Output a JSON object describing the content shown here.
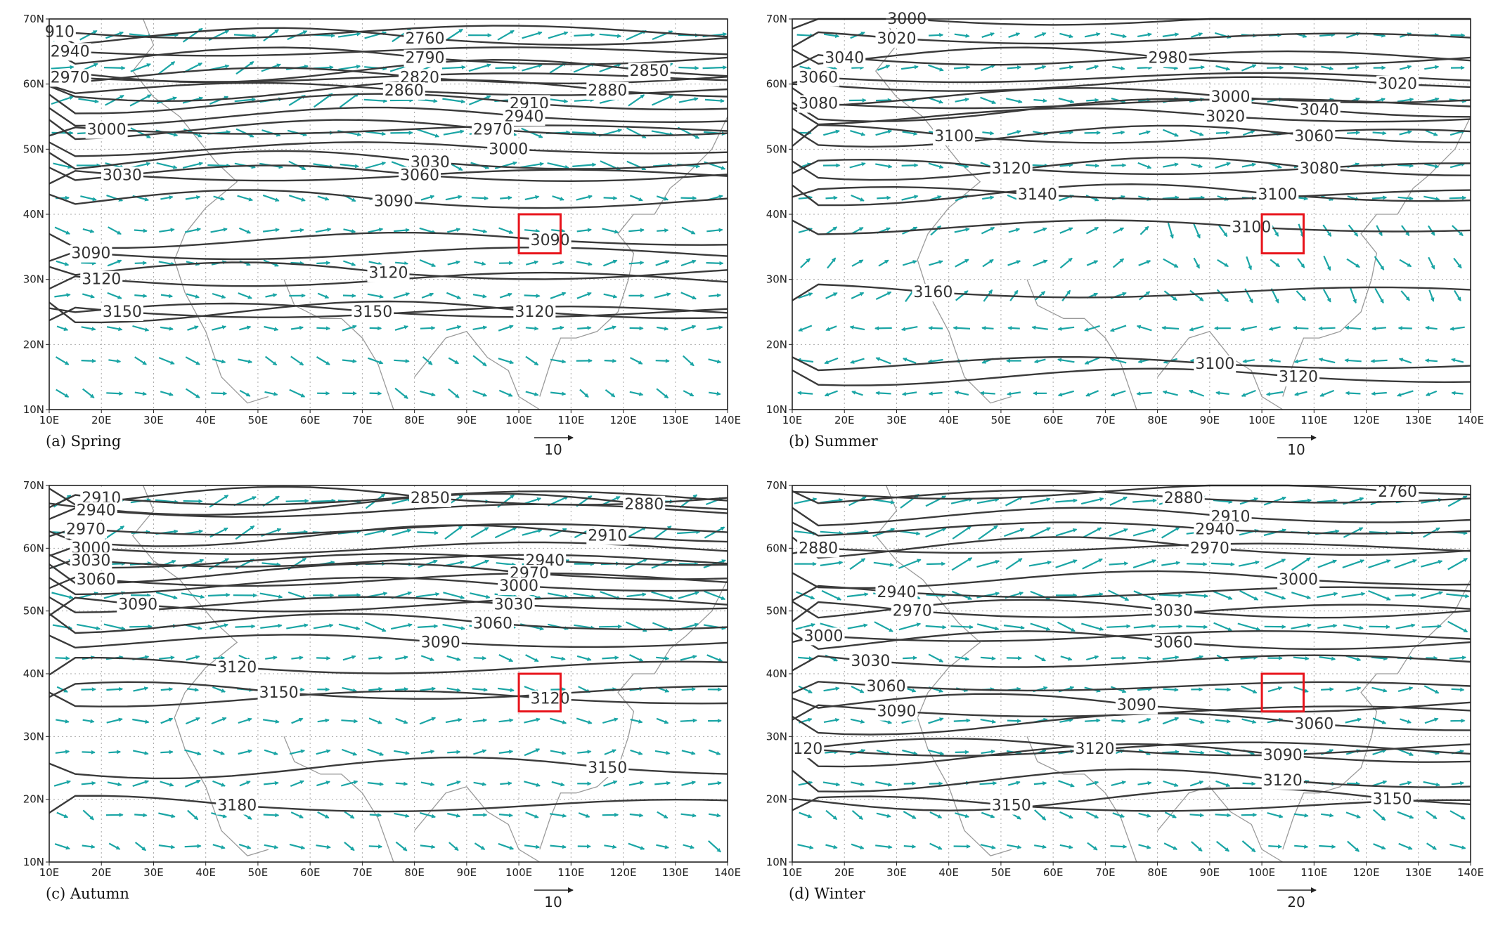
{
  "figure": {
    "colors": {
      "wind_vector": "#1aa5a5",
      "contour": "#3a3a3a",
      "coastline": "#9a9a9a",
      "study_box": "#e8141c",
      "grid": "#a9a9a9"
    },
    "x_ticks": [
      "10E",
      "20E",
      "30E",
      "40E",
      "50E",
      "60E",
      "70E",
      "80E",
      "90E",
      "100E",
      "110E",
      "120E",
      "130E",
      "140E"
    ],
    "y_ticks": [
      "70N",
      "60N",
      "50N",
      "40N",
      "30N",
      "20N",
      "10N"
    ],
    "lon_range": [
      10,
      140
    ],
    "lat_range": [
      10,
      70
    ],
    "panels": [
      {
        "id": "spring",
        "caption": "(a) Spring",
        "ref_vector": "10",
        "study_box": {
          "lon": [
            100,
            108
          ],
          "lat": [
            34,
            40
          ]
        },
        "contour_labels": [
          {
            "text": "910",
            "lon": 12,
            "lat": 68
          },
          {
            "text": "2940",
            "lon": 14,
            "lat": 65
          },
          {
            "text": "2970",
            "lon": 14,
            "lat": 61
          },
          {
            "text": "2760",
            "lon": 82,
            "lat": 67
          },
          {
            "text": "2790",
            "lon": 82,
            "lat": 64
          },
          {
            "text": "2820",
            "lon": 81,
            "lat": 61
          },
          {
            "text": "2860",
            "lon": 78,
            "lat": 59
          },
          {
            "text": "2850",
            "lon": 125,
            "lat": 62
          },
          {
            "text": "2880",
            "lon": 117,
            "lat": 59
          },
          {
            "text": "2910",
            "lon": 102,
            "lat": 57
          },
          {
            "text": "2940",
            "lon": 101,
            "lat": 55
          },
          {
            "text": "2970",
            "lon": 95,
            "lat": 53
          },
          {
            "text": "3000",
            "lon": 21,
            "lat": 53
          },
          {
            "text": "3000",
            "lon": 98,
            "lat": 50
          },
          {
            "text": "3030",
            "lon": 83,
            "lat": 48
          },
          {
            "text": "3060",
            "lon": 81,
            "lat": 46
          },
          {
            "text": "3030",
            "lon": 24,
            "lat": 46
          },
          {
            "text": "3090",
            "lon": 76,
            "lat": 42
          },
          {
            "text": "3090",
            "lon": 106,
            "lat": 36
          },
          {
            "text": "3090",
            "lon": 18,
            "lat": 34
          },
          {
            "text": "3120",
            "lon": 75,
            "lat": 31
          },
          {
            "text": "3120",
            "lon": 20,
            "lat": 30
          },
          {
            "text": "3150",
            "lon": 24,
            "lat": 25
          },
          {
            "text": "3150",
            "lon": 72,
            "lat": 25
          },
          {
            "text": "3120",
            "lon": 103,
            "lat": 25
          }
        ]
      },
      {
        "id": "summer",
        "caption": "(b) Summer",
        "ref_vector": "10",
        "study_box": {
          "lon": [
            100,
            108
          ],
          "lat": [
            34,
            40
          ]
        },
        "contour_labels": [
          {
            "text": "3000",
            "lon": 32,
            "lat": 70
          },
          {
            "text": "3020",
            "lon": 30,
            "lat": 67
          },
          {
            "text": "3040",
            "lon": 20,
            "lat": 64
          },
          {
            "text": "3060",
            "lon": 15,
            "lat": 61
          },
          {
            "text": "3080",
            "lon": 15,
            "lat": 57
          },
          {
            "text": "2980",
            "lon": 82,
            "lat": 64
          },
          {
            "text": "3000",
            "lon": 94,
            "lat": 58
          },
          {
            "text": "3020",
            "lon": 93,
            "lat": 55
          },
          {
            "text": "3020",
            "lon": 126,
            "lat": 60
          },
          {
            "text": "3040",
            "lon": 111,
            "lat": 56
          },
          {
            "text": "3060",
            "lon": 110,
            "lat": 52
          },
          {
            "text": "3080",
            "lon": 111,
            "lat": 47
          },
          {
            "text": "3100",
            "lon": 103,
            "lat": 43
          },
          {
            "text": "3100",
            "lon": 41,
            "lat": 52
          },
          {
            "text": "3120",
            "lon": 52,
            "lat": 47
          },
          {
            "text": "3140",
            "lon": 57,
            "lat": 43
          },
          {
            "text": "3100",
            "lon": 98,
            "lat": 38
          },
          {
            "text": "3160",
            "lon": 37,
            "lat": 28
          },
          {
            "text": "3100",
            "lon": 91,
            "lat": 17
          },
          {
            "text": "3120",
            "lon": 107,
            "lat": 15
          }
        ]
      },
      {
        "id": "autumn",
        "caption": "(c) Autumn",
        "ref_vector": "10",
        "study_box": {
          "lon": [
            100,
            108
          ],
          "lat": [
            34,
            40
          ]
        },
        "contour_labels": [
          {
            "text": "2910",
            "lon": 20,
            "lat": 68
          },
          {
            "text": "2940",
            "lon": 19,
            "lat": 66
          },
          {
            "text": "2970",
            "lon": 17,
            "lat": 63
          },
          {
            "text": "3000",
            "lon": 18,
            "lat": 60
          },
          {
            "text": "3030",
            "lon": 18,
            "lat": 58
          },
          {
            "text": "3060",
            "lon": 19,
            "lat": 55
          },
          {
            "text": "3090",
            "lon": 27,
            "lat": 51
          },
          {
            "text": "2850",
            "lon": 83,
            "lat": 68
          },
          {
            "text": "2880",
            "lon": 124,
            "lat": 67
          },
          {
            "text": "2910",
            "lon": 117,
            "lat": 62
          },
          {
            "text": "2940",
            "lon": 105,
            "lat": 58
          },
          {
            "text": "2970",
            "lon": 102,
            "lat": 56
          },
          {
            "text": "3000",
            "lon": 100,
            "lat": 54
          },
          {
            "text": "3030",
            "lon": 99,
            "lat": 51
          },
          {
            "text": "3060",
            "lon": 95,
            "lat": 48
          },
          {
            "text": "3090",
            "lon": 85,
            "lat": 45
          },
          {
            "text": "3120",
            "lon": 46,
            "lat": 41
          },
          {
            "text": "3150",
            "lon": 54,
            "lat": 37
          },
          {
            "text": "3120",
            "lon": 106,
            "lat": 36
          },
          {
            "text": "3150",
            "lon": 117,
            "lat": 25
          },
          {
            "text": "3180",
            "lon": 46,
            "lat": 19
          }
        ]
      },
      {
        "id": "winter",
        "caption": "(d) Winter",
        "ref_vector": "20",
        "study_box": {
          "lon": [
            100,
            108
          ],
          "lat": [
            34,
            40
          ]
        },
        "contour_labels": [
          {
            "text": "2760",
            "lon": 126,
            "lat": 69
          },
          {
            "text": "2880",
            "lon": 85,
            "lat": 68
          },
          {
            "text": "2910",
            "lon": 94,
            "lat": 65
          },
          {
            "text": "2940",
            "lon": 91,
            "lat": 63
          },
          {
            "text": "2970",
            "lon": 90,
            "lat": 60
          },
          {
            "text": "2880",
            "lon": 15,
            "lat": 60
          },
          {
            "text": "3000",
            "lon": 107,
            "lat": 55
          },
          {
            "text": "2940",
            "lon": 30,
            "lat": 53
          },
          {
            "text": "2970",
            "lon": 33,
            "lat": 50
          },
          {
            "text": "3030",
            "lon": 83,
            "lat": 50
          },
          {
            "text": "3000",
            "lon": 16,
            "lat": 46
          },
          {
            "text": "3060",
            "lon": 83,
            "lat": 45
          },
          {
            "text": "3030",
            "lon": 25,
            "lat": 42
          },
          {
            "text": "3060",
            "lon": 28,
            "lat": 38
          },
          {
            "text": "3090",
            "lon": 30,
            "lat": 34
          },
          {
            "text": "3090",
            "lon": 76,
            "lat": 35
          },
          {
            "text": "3060",
            "lon": 110,
            "lat": 32
          },
          {
            "text": "3090",
            "lon": 104,
            "lat": 27
          },
          {
            "text": "3120",
            "lon": 68,
            "lat": 28
          },
          {
            "text": "3120",
            "lon": 104,
            "lat": 23
          },
          {
            "text": "120",
            "lon": 13,
            "lat": 28
          },
          {
            "text": "3150",
            "lon": 52,
            "lat": 19
          },
          {
            "text": "3150",
            "lon": 125,
            "lat": 20
          }
        ]
      }
    ]
  }
}
